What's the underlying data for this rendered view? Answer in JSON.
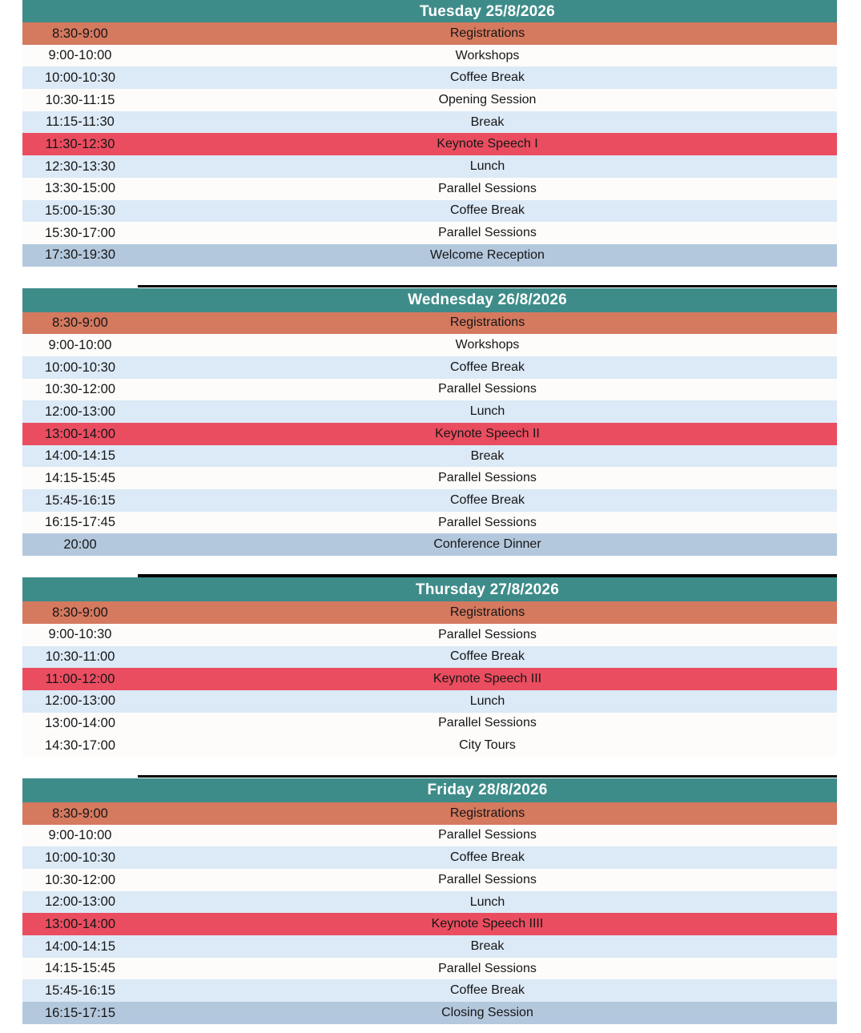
{
  "colors": {
    "header_bg": "#3e8c89",
    "header_text": "#ffffff",
    "divider": "#000000",
    "row_text": "#161616",
    "styles": {
      "registration": "#d5795f",
      "keynote": "#ea4d60",
      "light": "#dce9f6",
      "white": "#fdfcfb",
      "final": "#b4c8dd"
    }
  },
  "schedule": {
    "days": [
      {
        "title": "Tuesday 25/8/2026",
        "rows": [
          {
            "time": "8:30-9:00",
            "event": "Registrations",
            "style": "registration"
          },
          {
            "time": "9:00-10:00",
            "event": "Workshops",
            "style": "white"
          },
          {
            "time": "10:00-10:30",
            "event": "Coffee Break",
            "style": "light"
          },
          {
            "time": "10:30-11:15",
            "event": "Opening Session",
            "style": "white"
          },
          {
            "time": "11:15-11:30",
            "event": "Break",
            "style": "light"
          },
          {
            "time": "11:30-12:30",
            "event": "Keynote Speech I",
            "style": "keynote"
          },
          {
            "time": "12:30-13:30",
            "event": "Lunch",
            "style": "light"
          },
          {
            "time": "13:30-15:00",
            "event": "Parallel Sessions",
            "style": "white"
          },
          {
            "time": "15:00-15:30",
            "event": "Coffee Break",
            "style": "light"
          },
          {
            "time": "15:30-17:00",
            "event": "Parallel Sessions",
            "style": "white"
          },
          {
            "time": "17:30-19:30",
            "event": "Welcome Reception",
            "style": "final"
          }
        ]
      },
      {
        "title": "Wednesday 26/8/2026",
        "rows": [
          {
            "time": "8:30-9:00",
            "event": "Registrations",
            "style": "registration"
          },
          {
            "time": "9:00-10:00",
            "event": "Workshops",
            "style": "white"
          },
          {
            "time": "10:00-10:30",
            "event": "Coffee Break",
            "style": "light"
          },
          {
            "time": "10:30-12:00",
            "event": "Parallel Sessions",
            "style": "white"
          },
          {
            "time": "12:00-13:00",
            "event": "Lunch",
            "style": "light"
          },
          {
            "time": "13:00-14:00",
            "event": "Keynote Speech II",
            "style": "keynote"
          },
          {
            "time": "14:00-14:15",
            "event": "Break",
            "style": "light"
          },
          {
            "time": "14:15-15:45",
            "event": "Parallel Sessions",
            "style": "white"
          },
          {
            "time": "15:45-16:15",
            "event": "Coffee Break",
            "style": "light"
          },
          {
            "time": "16:15-17:45",
            "event": "Parallel Sessions",
            "style": "white"
          },
          {
            "time": "20:00",
            "event": "Conference Dinner",
            "style": "final"
          }
        ]
      },
      {
        "title": "Thursday 27/8/2026",
        "rows": [
          {
            "time": "8:30-9:00",
            "event": "Registrations",
            "style": "registration"
          },
          {
            "time": "9:00-10:30",
            "event": "Parallel Sessions",
            "style": "white"
          },
          {
            "time": "10:30-11:00",
            "event": "Coffee Break",
            "style": "light"
          },
          {
            "time": "11:00-12:00",
            "event": "Keynote Speech III",
            "style": "keynote"
          },
          {
            "time": "12:00-13:00",
            "event": "Lunch",
            "style": "light"
          },
          {
            "time": "13:00-14:00",
            "event": "Parallel Sessions",
            "style": "white"
          },
          {
            "time": "14:30-17:00",
            "event": "City Tours",
            "style": "white"
          }
        ]
      },
      {
        "title": "Friday 28/8/2026",
        "rows": [
          {
            "time": "8:30-9:00",
            "event": "Registrations",
            "style": "registration"
          },
          {
            "time": "9:00-10:00",
            "event": "Parallel Sessions",
            "style": "white"
          },
          {
            "time": "10:00-10:30",
            "event": "Coffee Break",
            "style": "light"
          },
          {
            "time": "10:30-12:00",
            "event": "Parallel Sessions",
            "style": "white"
          },
          {
            "time": "12:00-13:00",
            "event": "Lunch",
            "style": "light"
          },
          {
            "time": "13:00-14:00",
            "event": "Keynote Speech IIII",
            "style": "keynote"
          },
          {
            "time": "14:00-14:15",
            "event": "Break",
            "style": "light"
          },
          {
            "time": "14:15-15:45",
            "event": "Parallel Sessions",
            "style": "white"
          },
          {
            "time": "15:45-16:15",
            "event": "Coffee Break",
            "style": "light"
          },
          {
            "time": "16:15-17:15",
            "event": "Closing Session",
            "style": "final"
          }
        ]
      }
    ]
  }
}
